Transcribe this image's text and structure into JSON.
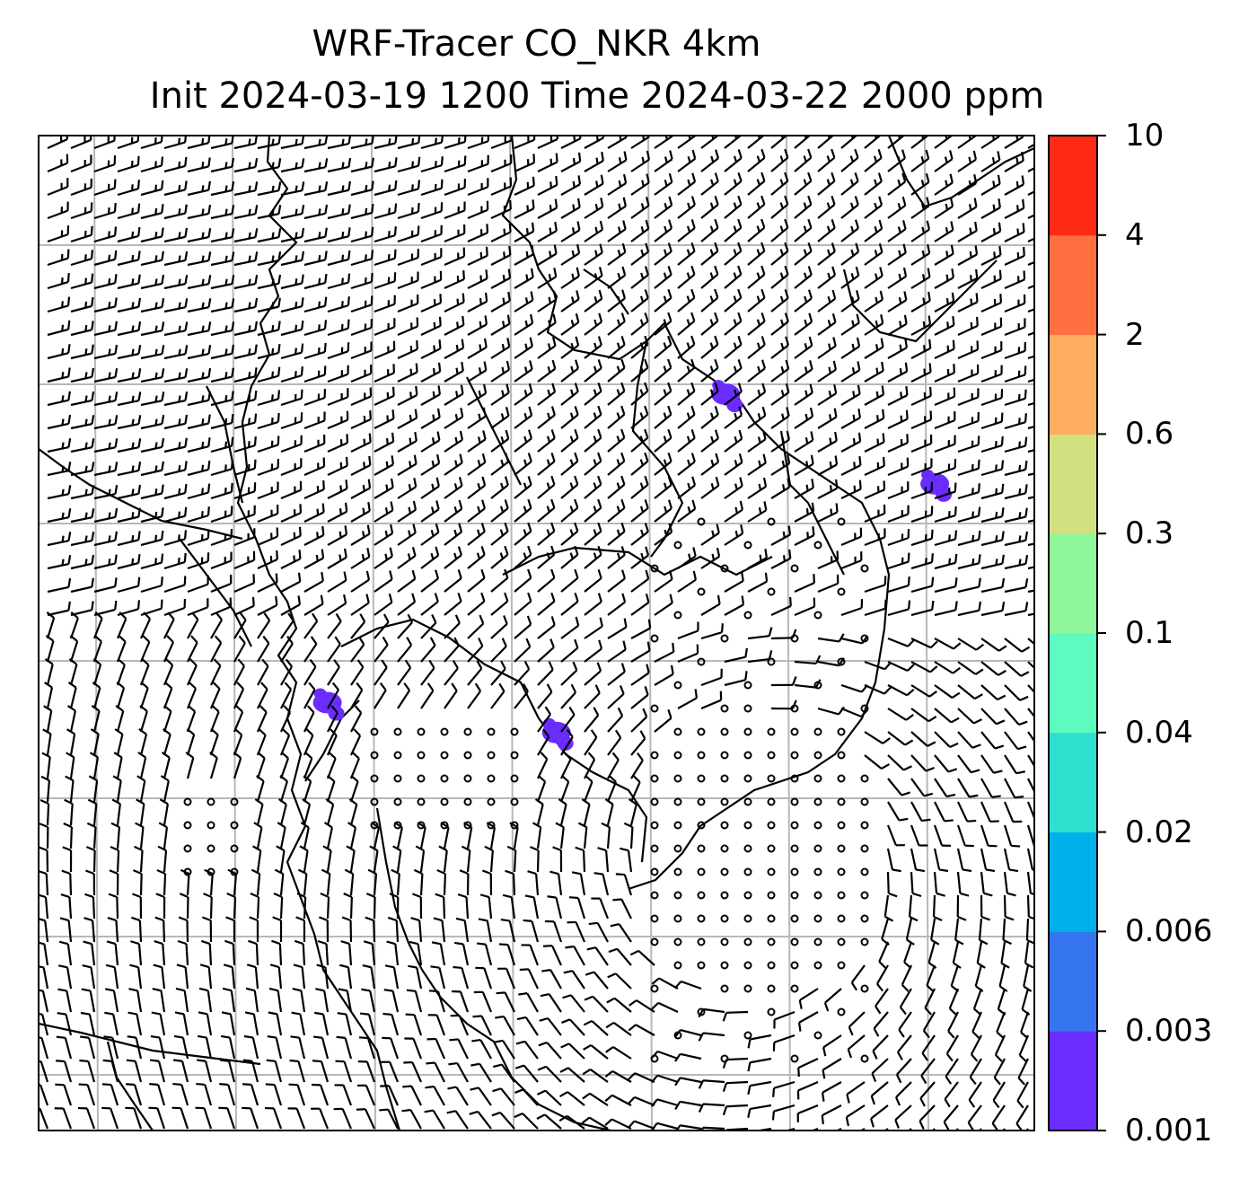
{
  "chart_data": {
    "type": "heatmap",
    "title": "WRF-Tracer CO_NKR 4km",
    "subtitle": "Init 2024-03-19 1200 Time 2024-03-22 2000 ppm",
    "units": "ppm",
    "grid": true,
    "overlay": "wind barbs",
    "colorbar": {
      "placement": "right",
      "levels": [
        "0.001",
        "0.003",
        "0.006",
        "0.02",
        "0.04",
        "0.1",
        "0.3",
        "0.6",
        "2",
        "4",
        "10"
      ],
      "colors": [
        "#6a2cff",
        "#3575f0",
        "#00b0ec",
        "#2fdfd0",
        "#5dfbc0",
        "#8ff79a",
        "#d2e080",
        "#ffae60",
        "#ff7040",
        "#ff2a14"
      ]
    },
    "tracer_patches": [
      {
        "lon_frac": 0.29,
        "lat_frac": 0.57,
        "level": "0.001"
      },
      {
        "lon_frac": 0.52,
        "lat_frac": 0.6,
        "level": "0.001"
      },
      {
        "lon_frac": 0.69,
        "lat_frac": 0.26,
        "level": "0.001"
      },
      {
        "lon_frac": 0.9,
        "lat_frac": 0.35,
        "level": "0.001"
      }
    ],
    "colors": {
      "coastline": "#000000",
      "gridline": "#b8b8b8",
      "barb": "#000000",
      "tracer": "#6a2cff"
    }
  }
}
